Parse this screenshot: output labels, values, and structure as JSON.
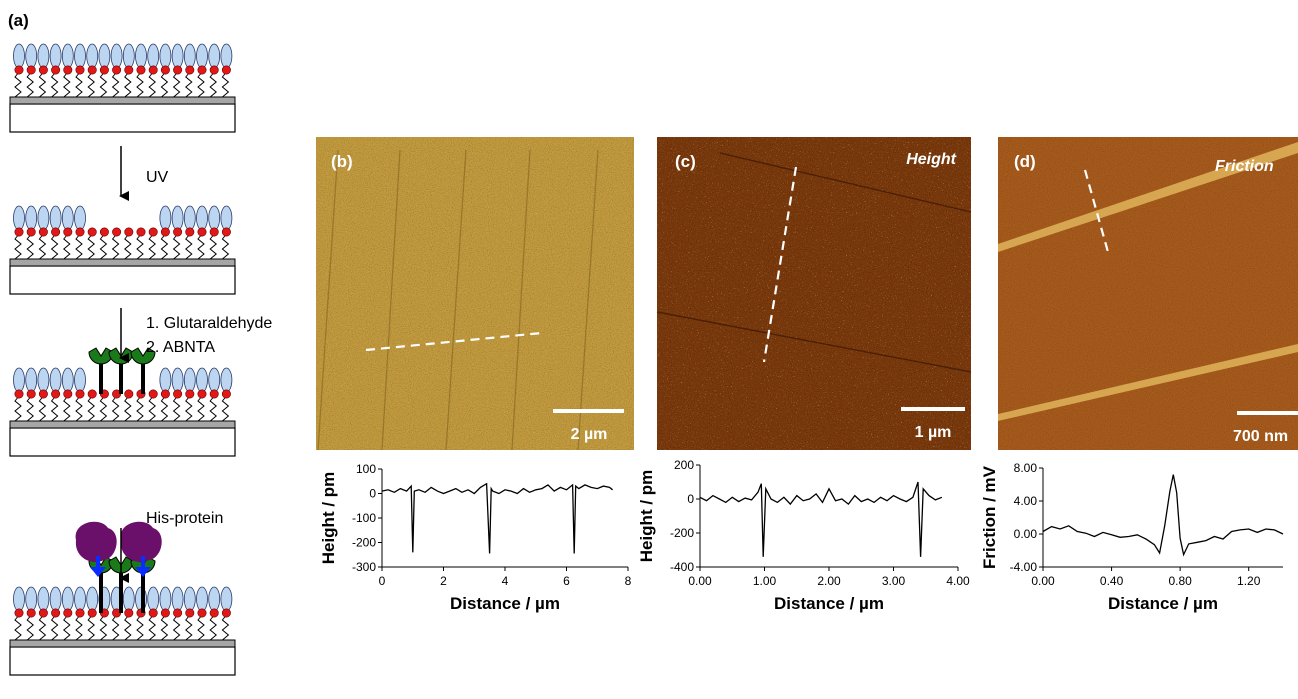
{
  "schematic": {
    "panel_label": "(a)",
    "steps": [
      {
        "label_lines": [
          "UV"
        ]
      },
      {
        "label_lines": [
          "1. Glutaraldehyde",
          "2. ABNTA"
        ]
      },
      {
        "label_lines": [
          "His-protein"
        ]
      }
    ]
  },
  "images": [
    {
      "panel_label": "(b)",
      "channel": "",
      "scalebar": "2 µm",
      "tone": "light-gold"
    },
    {
      "panel_label": "(c)",
      "channel": "Height",
      "scalebar": "1 µm",
      "tone": "dark-brown"
    },
    {
      "panel_label": "(d)",
      "channel": "Friction",
      "scalebar": "700 nm",
      "tone": "orange-brown"
    }
  ],
  "colors": {
    "lipid_head": "#bcd6f2",
    "lipid_bead": "#e01818",
    "substrate_layer": "#a6a6a6",
    "ligand": "#1a7a1a",
    "protein": "#6a0f6a",
    "his_tag": "#0a2cff",
    "profile_line": "#000000",
    "trace_marker": "#ffffff"
  },
  "chart_data": [
    {
      "type": "line",
      "xlabel": "Distance / µm",
      "ylabel": "Height / pm",
      "xlim": [
        0,
        8
      ],
      "ylim": [
        -300,
        100
      ],
      "x_ticks": [
        "0",
        "2",
        "4",
        "6",
        "8"
      ],
      "y_ticks": [
        "100",
        "0",
        "-100",
        "-200",
        "-300"
      ],
      "series": [
        {
          "x": [
            0.0,
            0.2,
            0.4,
            0.6,
            0.8,
            0.95,
            1.0,
            1.05,
            1.2,
            1.4,
            1.6,
            1.8,
            2.0,
            2.2,
            2.4,
            2.6,
            2.8,
            3.0,
            3.2,
            3.4,
            3.5,
            3.55,
            3.6,
            3.8,
            4.0,
            4.2,
            4.4,
            4.6,
            4.8,
            5.0,
            5.2,
            5.4,
            5.6,
            5.8,
            6.0,
            6.2,
            6.25,
            6.3,
            6.4,
            6.6,
            6.8,
            7.0,
            7.2,
            7.4,
            7.5
          ],
          "y": [
            10,
            15,
            5,
            20,
            10,
            30,
            -240,
            10,
            15,
            5,
            25,
            10,
            0,
            10,
            20,
            5,
            15,
            0,
            25,
            40,
            -245,
            20,
            10,
            0,
            15,
            10,
            0,
            20,
            5,
            15,
            20,
            35,
            10,
            25,
            15,
            35,
            -245,
            30,
            20,
            35,
            25,
            20,
            30,
            25,
            15
          ]
        }
      ]
    },
    {
      "type": "line",
      "xlabel": "Distance / µm",
      "ylabel": "Height / pm",
      "xlim": [
        0,
        4
      ],
      "ylim": [
        -400,
        200
      ],
      "x_ticks": [
        "0.00",
        "1.00",
        "2.00",
        "3.00",
        "4.00"
      ],
      "y_ticks": [
        "200",
        "0",
        "-200",
        "-400"
      ],
      "series": [
        {
          "x": [
            0.0,
            0.1,
            0.2,
            0.3,
            0.4,
            0.5,
            0.6,
            0.7,
            0.8,
            0.9,
            0.95,
            0.98,
            1.02,
            1.1,
            1.2,
            1.3,
            1.4,
            1.5,
            1.6,
            1.7,
            1.8,
            1.9,
            2.0,
            2.1,
            2.2,
            2.3,
            2.4,
            2.5,
            2.6,
            2.7,
            2.8,
            2.9,
            3.0,
            3.1,
            3.2,
            3.3,
            3.38,
            3.42,
            3.46,
            3.55,
            3.65,
            3.75
          ],
          "y": [
            10,
            -10,
            20,
            0,
            -20,
            10,
            -15,
            5,
            -5,
            40,
            90,
            -340,
            60,
            0,
            -20,
            10,
            -30,
            20,
            -10,
            0,
            30,
            -20,
            60,
            -10,
            0,
            -30,
            20,
            -15,
            0,
            -20,
            10,
            -10,
            20,
            0,
            -15,
            10,
            100,
            -340,
            60,
            20,
            -5,
            10
          ]
        }
      ]
    },
    {
      "type": "line",
      "xlabel": "Distance / µm",
      "ylabel": "Friction / mV",
      "xlim": [
        0,
        1.4
      ],
      "ylim": [
        -4,
        8
      ],
      "x_ticks": [
        "0.00",
        "0.40",
        "0.80",
        "1.20"
      ],
      "y_ticks": [
        "8.00",
        "4.00",
        "0.00",
        "-4.00"
      ],
      "series": [
        {
          "x": [
            0.0,
            0.05,
            0.1,
            0.15,
            0.2,
            0.25,
            0.3,
            0.35,
            0.4,
            0.45,
            0.5,
            0.55,
            0.6,
            0.65,
            0.68,
            0.71,
            0.74,
            0.76,
            0.78,
            0.8,
            0.82,
            0.85,
            0.9,
            0.95,
            1.0,
            1.05,
            1.1,
            1.15,
            1.2,
            1.25,
            1.3,
            1.35,
            1.4
          ],
          "y": [
            0.3,
            0.9,
            0.6,
            1.0,
            0.3,
            0.1,
            -0.3,
            0.2,
            -0.1,
            -0.4,
            -0.3,
            -0.1,
            -0.6,
            -1.3,
            -2.3,
            1.0,
            5.2,
            7.2,
            5.0,
            -0.5,
            -2.5,
            -1.2,
            -1.0,
            -0.8,
            -0.3,
            -0.6,
            0.3,
            0.5,
            0.6,
            0.2,
            0.6,
            0.5,
            0.0
          ]
        }
      ]
    }
  ]
}
